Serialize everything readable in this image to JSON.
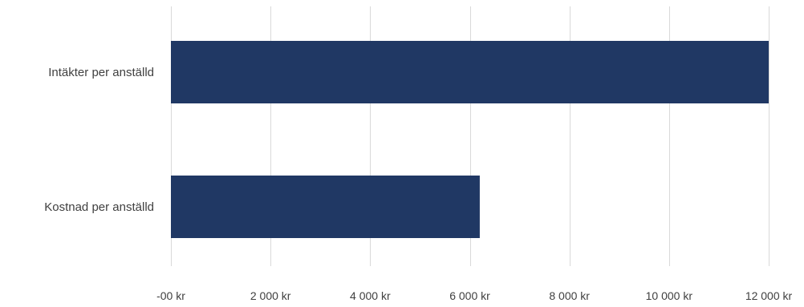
{
  "chart_data": {
    "type": "bar",
    "orientation": "horizontal",
    "title": "",
    "xlabel": "",
    "ylabel": "",
    "categories": [
      "Intäkter per anställd",
      "Kostnad per anställd"
    ],
    "values": [
      12000,
      6200
    ],
    "xlim": [
      0,
      12000
    ],
    "x_ticks": [
      0,
      2000,
      4000,
      6000,
      8000,
      10000,
      12000
    ],
    "x_tick_labels": [
      "-00 kr",
      "2 000 kr",
      "4 000 kr",
      "6 000 kr",
      "8 000 kr",
      "10 000 kr",
      "12 000 kr"
    ],
    "grid": true,
    "legend": "none",
    "bar_color": "#203864",
    "grid_color": "#d9d9d9",
    "text_color": "#404040"
  }
}
